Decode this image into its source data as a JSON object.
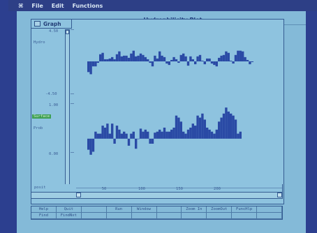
{
  "menubar": {
    "apple_glyph": "⌘",
    "items": [
      "File",
      "Edit",
      "Functions"
    ]
  },
  "window": {
    "title": "Hydrophilicity Plot"
  },
  "graph_window": {
    "tab_label": "Graph",
    "y_labels": {
      "top_max": "4.50",
      "top_series": "Hydro",
      "top_min": "-4.50",
      "bottom_max": "1.00",
      "bottom_series": "Surface",
      "bottom_sub": "Prob",
      "bottom_min": "0.00"
    },
    "position_label": "posit",
    "ruler_ticks": [
      "50",
      "100",
      "150",
      "200"
    ]
  },
  "toolbar": {
    "row1": [
      "Help",
      "Quit",
      "",
      "Run",
      "Window",
      "",
      "Zoom In",
      "ZoomOut",
      "FuncHlp",
      ""
    ],
    "row2": [
      "Find",
      "FindNxt",
      "",
      "",
      "",
      "",
      "",
      "",
      "",
      ""
    ]
  },
  "colors": {
    "bar": "#2a4aa5",
    "screen": "#84bad8",
    "frame": "#2c3f8f"
  },
  "chart_data": [
    {
      "type": "bar",
      "title": "",
      "ylabel": "Hydro",
      "ylim": [
        -4.5,
        4.5
      ],
      "x_start": 1,
      "values": [
        -1.5,
        -1.8,
        -0.7,
        -0.7,
        -0.2,
        1.0,
        1.2,
        0.3,
        0.3,
        0.4,
        0.6,
        0.3,
        1.0,
        1.4,
        0.7,
        0.8,
        0.8,
        0.5,
        1.1,
        1.5,
        0.7,
        0.8,
        1.1,
        0.9,
        0.6,
        0.3,
        -0.2,
        -0.7,
        0.8,
        0.4,
        1.4,
        0.8,
        0.6,
        -0.3,
        -0.5,
        0.2,
        0.6,
        0.3,
        -0.2,
        0.9,
        1.1,
        0.7,
        -0.6,
        0.7,
        0.3,
        -0.4,
        0.7,
        0.9,
        0.1,
        -0.4,
        0.4,
        0.4,
        -0.3,
        -0.5,
        -0.7,
        0.5,
        0.8,
        0.9,
        1.4,
        1.2,
        0.1,
        -0.3,
        0.9,
        1.5,
        1.5,
        1.4,
        0.6,
        0.2,
        -0.4,
        -0.1
      ]
    },
    {
      "type": "bar",
      "title": "",
      "ylabel": "Surface Prob",
      "ylim": [
        0,
        1
      ],
      "x_start": 1,
      "values": [
        0.44,
        0.39,
        0.42,
        0.62,
        0.6,
        0.6,
        0.68,
        0.66,
        0.7,
        0.6,
        0.7,
        0.5,
        0.68,
        0.64,
        0.6,
        0.62,
        0.6,
        0.48,
        0.6,
        0.62,
        0.45,
        0.55,
        0.65,
        0.62,
        0.64,
        0.62,
        0.5,
        0.5,
        0.61,
        0.62,
        0.64,
        0.62,
        0.66,
        0.62,
        0.62,
        0.64,
        0.66,
        0.78,
        0.76,
        0.72,
        0.62,
        0.6,
        0.64,
        0.66,
        0.7,
        0.68,
        0.78,
        0.76,
        0.8,
        0.74,
        0.66,
        0.64,
        0.62,
        0.6,
        0.64,
        0.72,
        0.76,
        0.8,
        0.86,
        0.82,
        0.8,
        0.78,
        0.74,
        0.6,
        0.62
      ]
    }
  ]
}
